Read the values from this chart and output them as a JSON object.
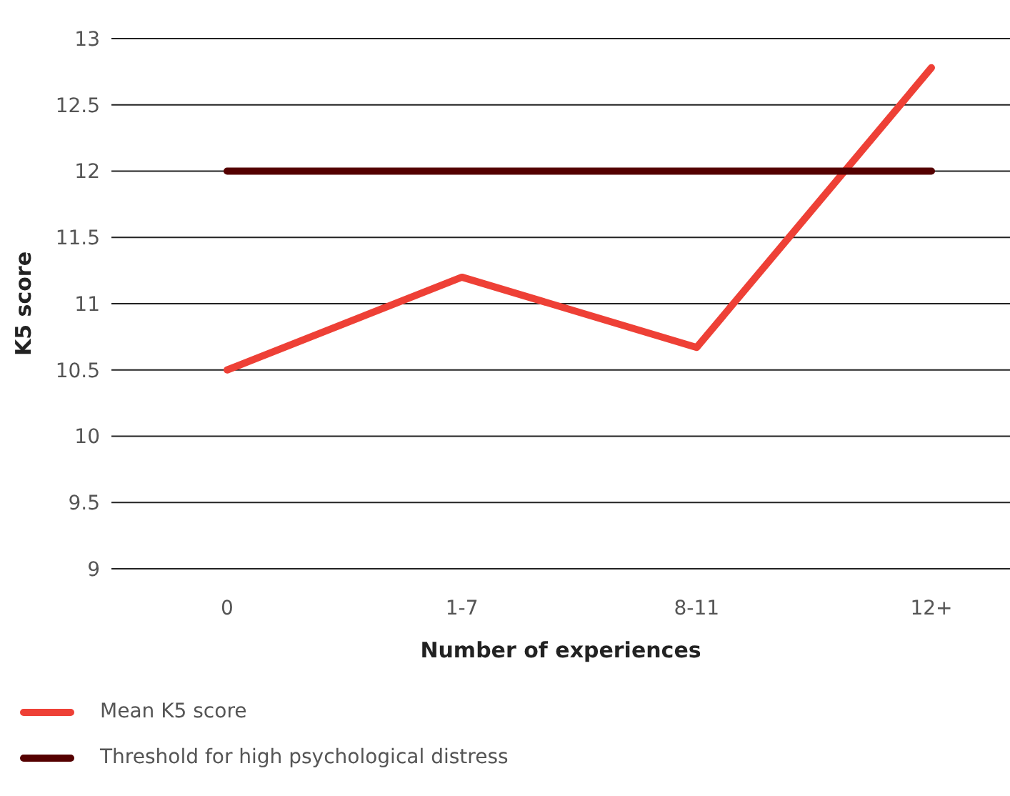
{
  "chart_data": {
    "type": "line",
    "xlabel": "Number of experiences",
    "ylabel": "K5 score",
    "categories": [
      "0",
      "1-7",
      "8-11",
      "12+"
    ],
    "series": [
      {
        "name": "Mean K5 score",
        "color": "#ee4036",
        "values": [
          10.5,
          11.2,
          10.67,
          12.78
        ]
      },
      {
        "name": "Threshold for high psychological distress",
        "color": "#550000",
        "values": [
          12,
          12,
          12,
          12
        ]
      }
    ],
    "ylim": [
      9,
      13
    ],
    "yticks": [
      9,
      9.5,
      10,
      10.5,
      11,
      11.5,
      12,
      12.5,
      13
    ],
    "grid": "y",
    "legend": "bottom",
    "marker": "none",
    "line_style": "solid"
  }
}
